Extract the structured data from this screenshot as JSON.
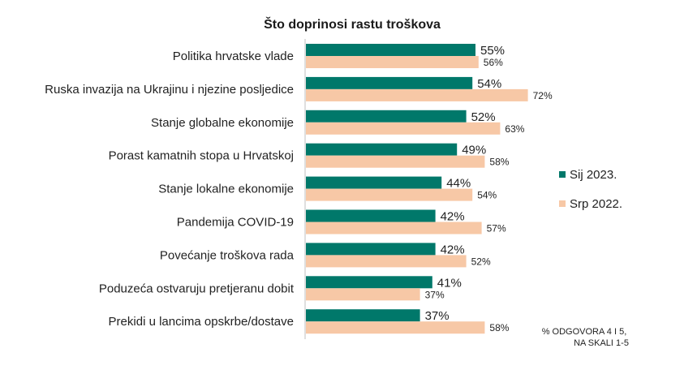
{
  "chart_data": {
    "type": "bar",
    "orientation": "horizontal",
    "title": "Što doprinosi rastu troškova",
    "xlabel": "",
    "ylabel": "",
    "xlim": [
      0,
      100
    ],
    "grid": false,
    "legend_position": "right",
    "categories": [
      "Politika hrvatske vlade",
      "Ruska invazija na Ukrajinu i njezine posljedice",
      "Stanje globalne ekonomije",
      "Porast kamatnih stopa u Hrvatskoj",
      "Stanje lokalne ekonomije",
      "Pandemija COVID-19",
      "Povećanje troškova rada",
      "Poduzeća ostvaruju pretjeranu dobit",
      "Prekidi u lancima opskrbe/dostave"
    ],
    "series": [
      {
        "name": "Sij 2023.",
        "color": "#00786a",
        "values": [
          55,
          54,
          52,
          49,
          44,
          42,
          42,
          41,
          37
        ],
        "labels": [
          "55%",
          "54%",
          "52%",
          "49%",
          "44%",
          "42%",
          "42%",
          "41%",
          "37%"
        ]
      },
      {
        "name": "Srp 2022.",
        "color": "#f7c8a6",
        "values": [
          56,
          72,
          63,
          58,
          54,
          57,
          52,
          37,
          58
        ],
        "labels": [
          "56%",
          "72%",
          "63%",
          "58%",
          "54%",
          "57%",
          "52%",
          "37%",
          "58%"
        ]
      }
    ],
    "note_lines": [
      "% ODGOVORA 4 I 5,",
      "NA SKALI 1-5"
    ]
  }
}
